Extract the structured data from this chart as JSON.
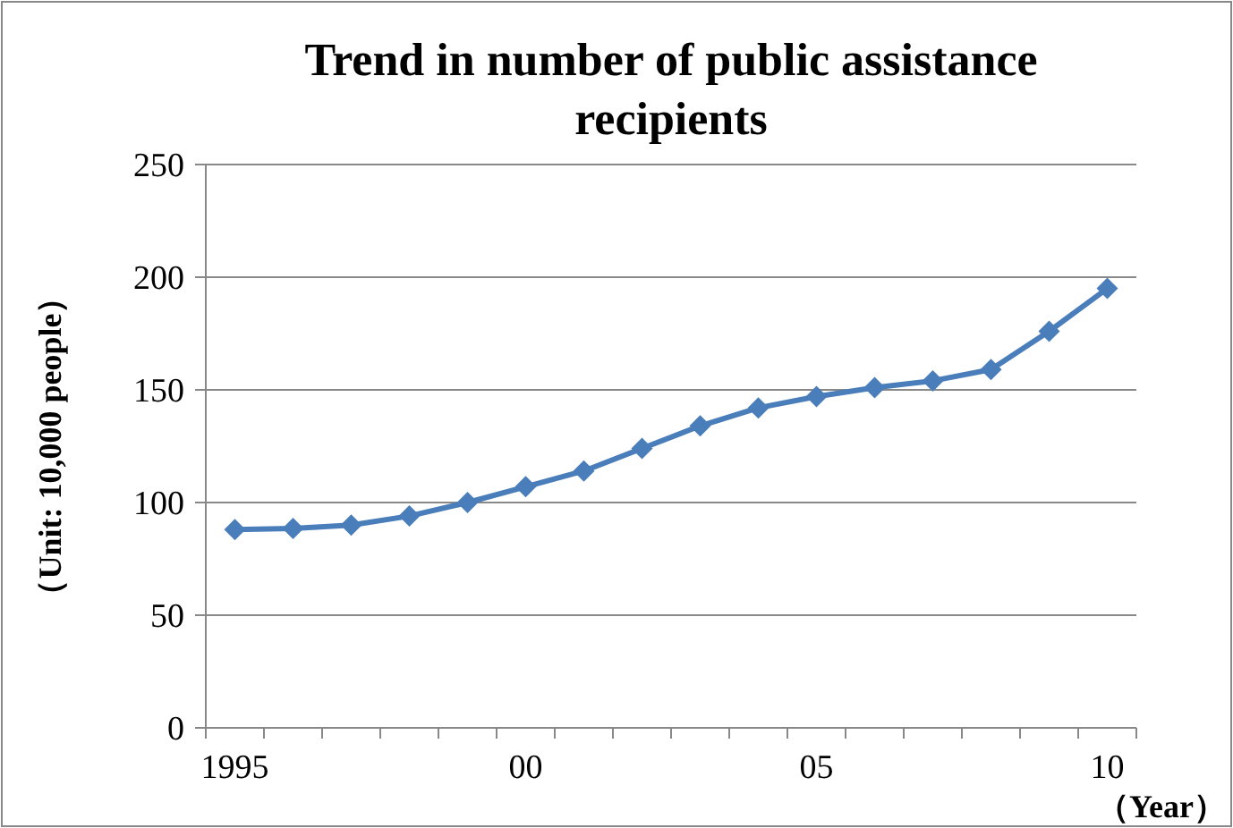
{
  "chart_data": {
    "type": "line",
    "title": "Trend in number of public assistance recipients",
    "xlabel": "（Year）",
    "ylabel": "（Unit: 10,000 people）",
    "categories": [
      "1995",
      null,
      null,
      null,
      null,
      "00",
      null,
      null,
      null,
      null,
      "05",
      null,
      null,
      null,
      null,
      "10"
    ],
    "series": [
      {
        "color": "#4a7ebb",
        "values": [
          88,
          88.5,
          90,
          94,
          100,
          107,
          114,
          124,
          134,
          142,
          147,
          151,
          154,
          159,
          176,
          195
        ]
      }
    ],
    "ylim": [
      0,
      250
    ],
    "yticks": [
      0,
      50,
      100,
      150,
      200,
      250
    ],
    "grid": "y",
    "marker": "diamond",
    "line_style": "solid"
  }
}
